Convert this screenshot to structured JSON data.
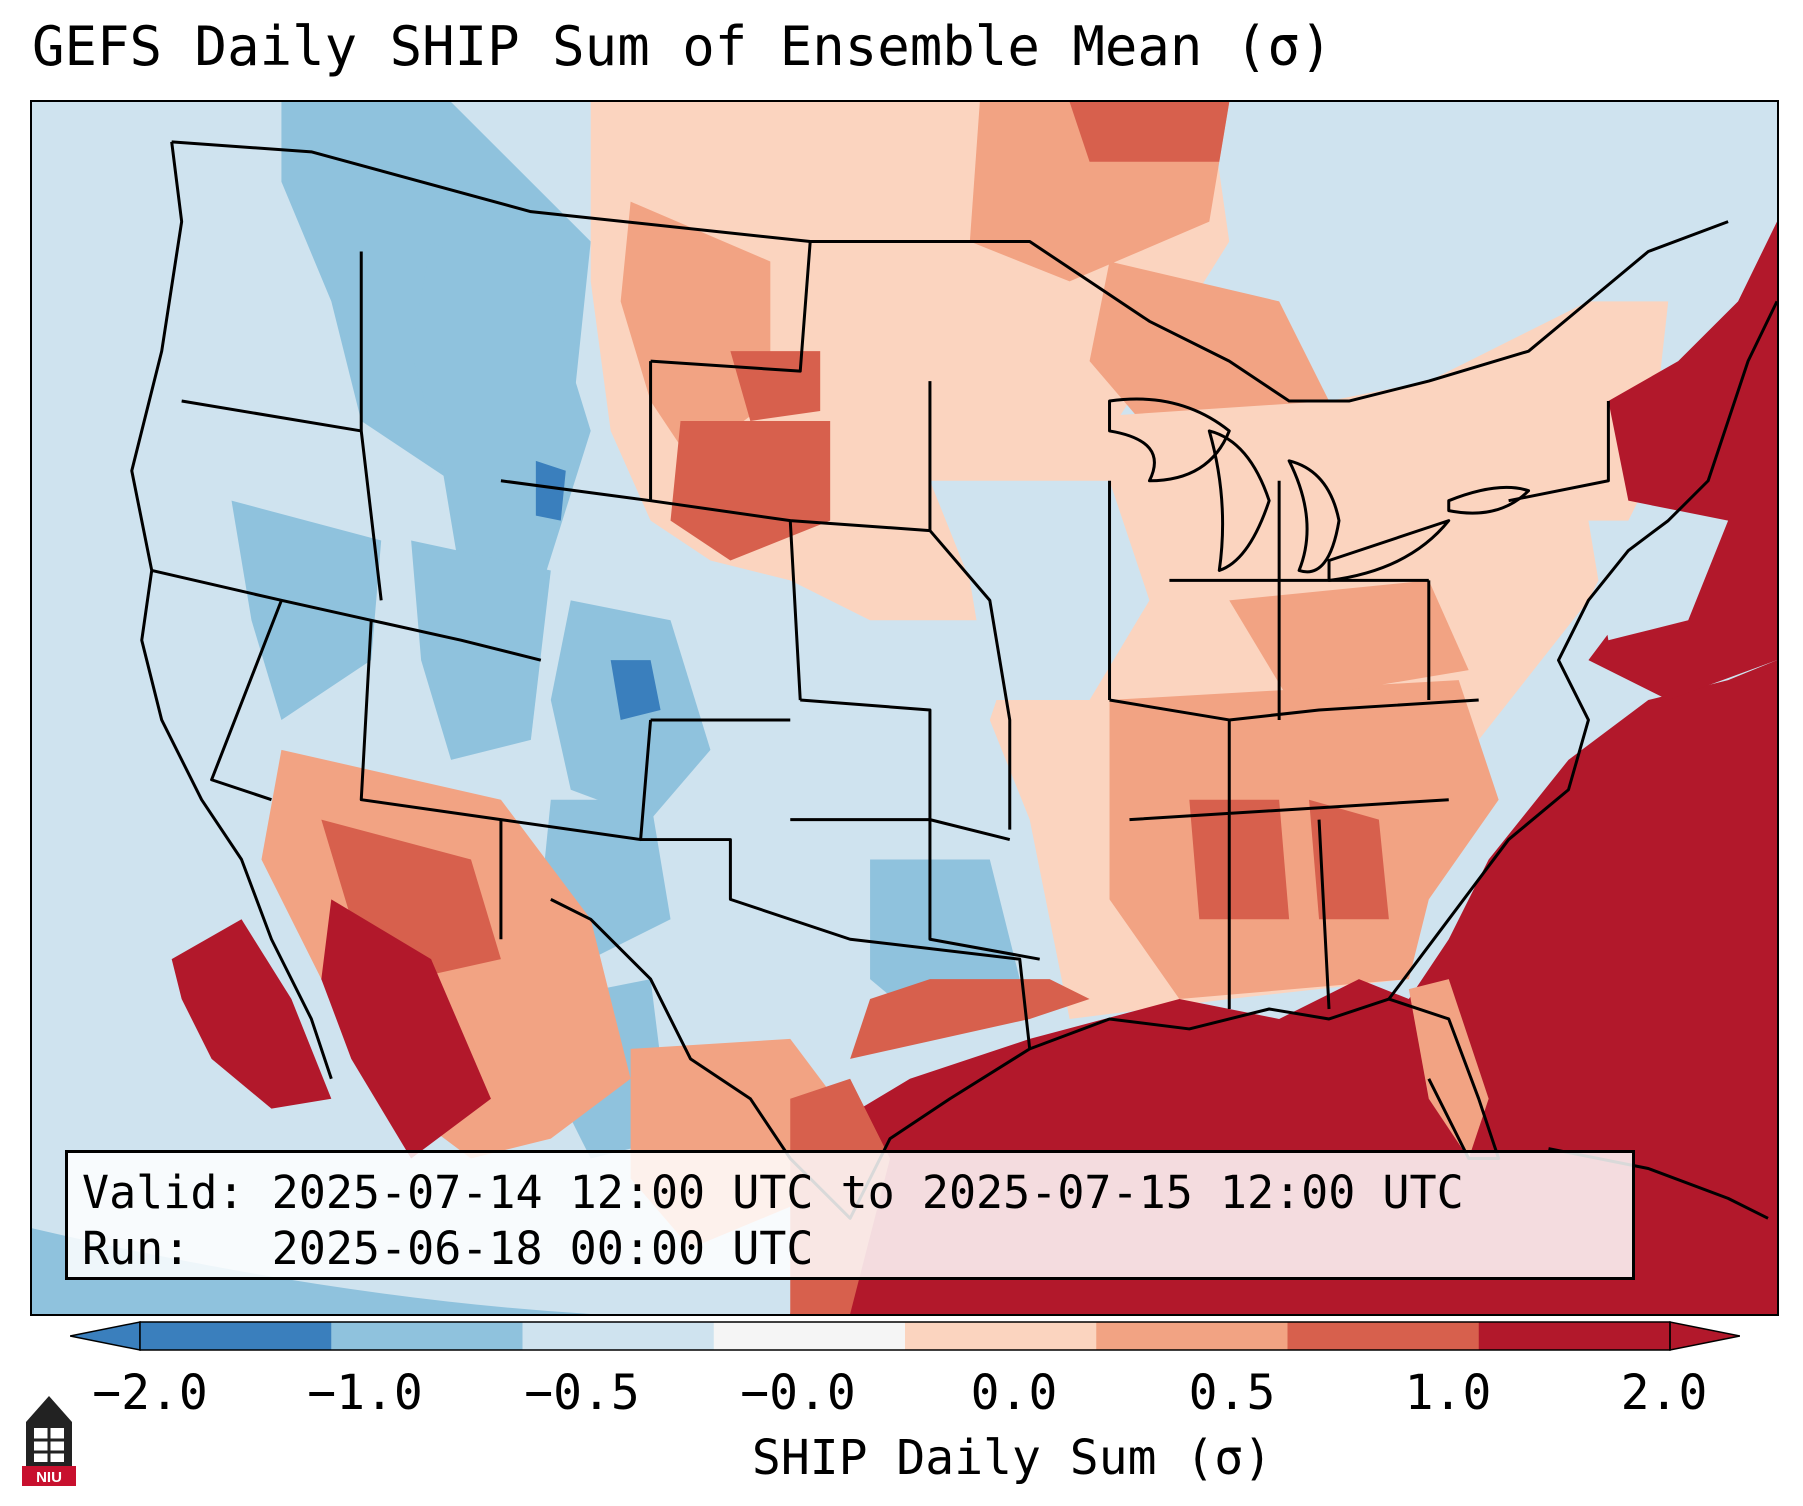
{
  "title": "GEFS Daily SHIP Sum of Ensemble Mean (σ)",
  "info": {
    "valid_line": "Valid: 2025-07-14 12:00 UTC to 2025-07-15 12:00 UTC",
    "run_line": "Run:   2025-06-18 00:00 UTC"
  },
  "colorbar": {
    "label": "SHIP Daily Sum (σ)",
    "ticks": [
      "−2.0",
      "−1.0",
      "−0.5",
      "−0.0",
      "0.0",
      "0.5",
      "1.0",
      "2.0"
    ],
    "colors": [
      "#3a7fbd",
      "#8fc2dd",
      "#cfe3ef",
      "#f5f5f5",
      "#fbd4bf",
      "#f2a383",
      "#d7604d",
      "#b2182b"
    ]
  },
  "logo": {
    "text": "NIU"
  },
  "map": {
    "colors": {
      "ocean": "#cfe3ef",
      "land_blue": "#cfe3ef",
      "mid_blue": "#8fc2dd",
      "dark_blue": "#3a7fbd",
      "light_red": "#fbd4bf",
      "mid_red": "#f2a383",
      "red": "#d7604d",
      "dark_red": "#b2182b",
      "white": "#f5f5f5"
    }
  }
}
